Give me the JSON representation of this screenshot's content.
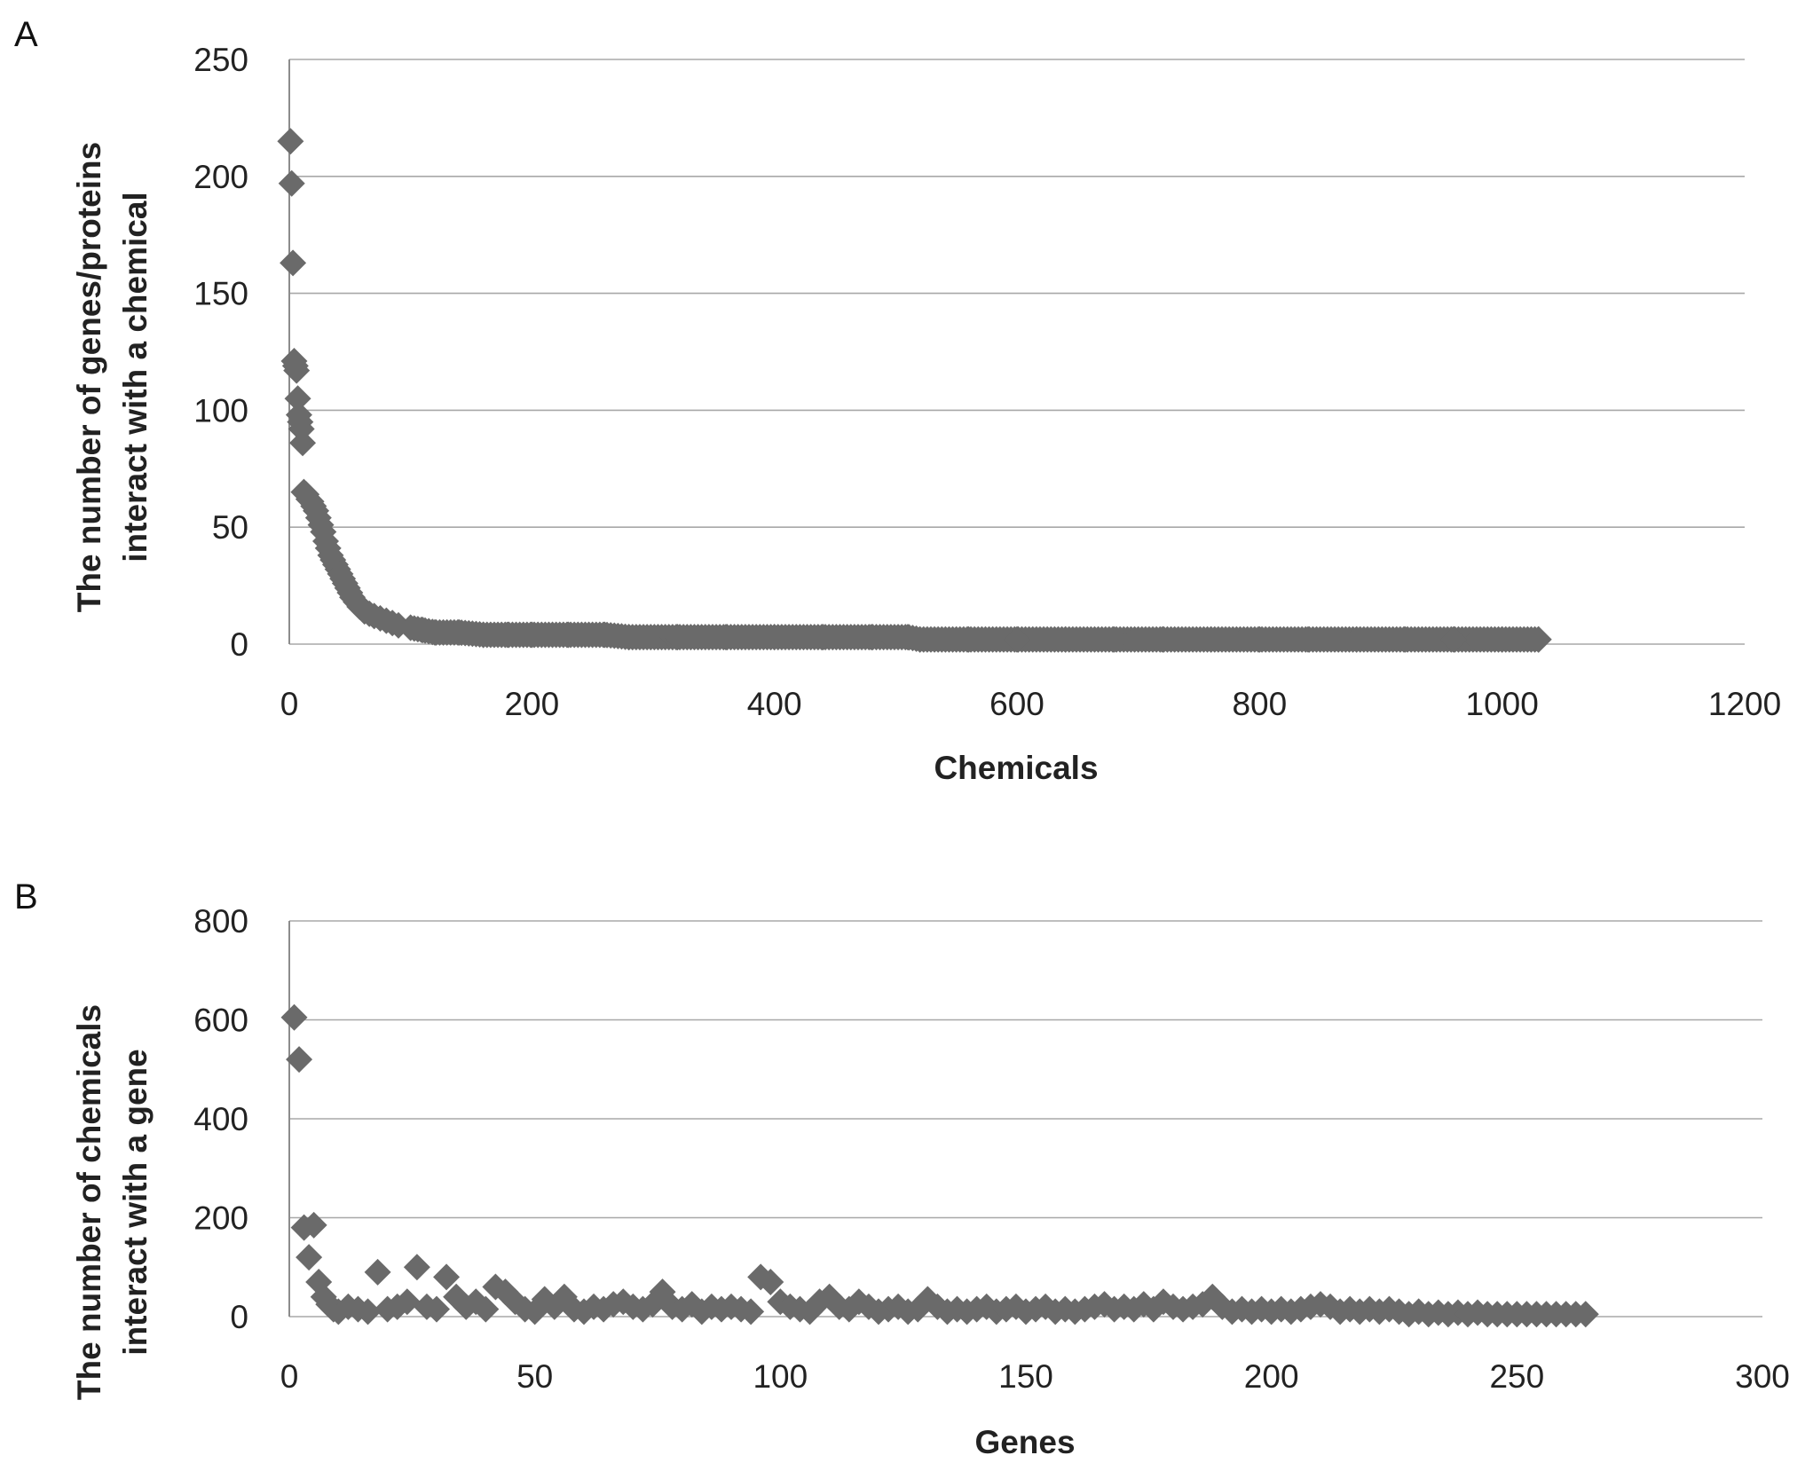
{
  "chart_data": [
    {
      "panel": "A",
      "type": "scatter",
      "marker": "diamond",
      "color": "#6a6a6a",
      "xlabel": "Chemicals",
      "ylabel_lines": [
        "The number of genes/proteins",
        "interact with a chemical"
      ],
      "xlim": [
        0,
        1200
      ],
      "ylim": [
        0,
        250
      ],
      "xticks": [
        0,
        200,
        400,
        600,
        800,
        1000,
        1200
      ],
      "yticks": [
        0,
        50,
        100,
        150,
        200,
        250
      ],
      "grid": "horizontal",
      "legend": "none",
      "x_range_of_points": [
        1,
        1030
      ],
      "points": [
        [
          1,
          215
        ],
        [
          2,
          197
        ],
        [
          3,
          163
        ],
        [
          4,
          121
        ],
        [
          5,
          119
        ],
        [
          6,
          117
        ],
        [
          7,
          105
        ],
        [
          8,
          98
        ],
        [
          9,
          95
        ],
        [
          10,
          92
        ],
        [
          11,
          86
        ],
        [
          12,
          65
        ],
        [
          14,
          64
        ],
        [
          16,
          62
        ],
        [
          18,
          61
        ],
        [
          20,
          59
        ],
        [
          22,
          57
        ],
        [
          24,
          54
        ],
        [
          26,
          51
        ],
        [
          28,
          48
        ],
        [
          30,
          44
        ],
        [
          32,
          41
        ],
        [
          34,
          38
        ],
        [
          36,
          36
        ],
        [
          38,
          34
        ],
        [
          40,
          32
        ],
        [
          42,
          30
        ],
        [
          44,
          28
        ],
        [
          46,
          26
        ],
        [
          48,
          24
        ],
        [
          50,
          22
        ],
        [
          52,
          20
        ],
        [
          55,
          18
        ],
        [
          58,
          16
        ],
        [
          62,
          14
        ],
        [
          66,
          13
        ],
        [
          70,
          12
        ],
        [
          75,
          11
        ],
        [
          80,
          10
        ],
        [
          85,
          9
        ],
        [
          90,
          8
        ],
        [
          100,
          7
        ],
        [
          110,
          6
        ],
        [
          120,
          5
        ],
        [
          140,
          5
        ],
        [
          160,
          4
        ],
        [
          180,
          4
        ],
        [
          200,
          4
        ],
        [
          230,
          4
        ],
        [
          260,
          4
        ],
        [
          280,
          3
        ],
        [
          320,
          3
        ],
        [
          360,
          3
        ],
        [
          400,
          3
        ],
        [
          440,
          3
        ],
        [
          480,
          3
        ],
        [
          510,
          3
        ],
        [
          520,
          2
        ],
        [
          560,
          2
        ],
        [
          600,
          2
        ],
        [
          640,
          2
        ],
        [
          680,
          2
        ],
        [
          720,
          2
        ],
        [
          760,
          2
        ],
        [
          800,
          2
        ],
        [
          840,
          2
        ],
        [
          880,
          2
        ],
        [
          920,
          2
        ],
        [
          960,
          2
        ],
        [
          1000,
          2
        ],
        [
          1030,
          2
        ]
      ]
    },
    {
      "panel": "B",
      "type": "scatter",
      "marker": "diamond",
      "color": "#6a6a6a",
      "xlabel": "Genes",
      "ylabel_lines": [
        "The number of chemicals",
        "interact with a gene"
      ],
      "xlim": [
        0,
        300
      ],
      "ylim": [
        0,
        800
      ],
      "xticks": [
        0,
        50,
        100,
        150,
        200,
        250,
        300
      ],
      "yticks": [
        0,
        200,
        400,
        600,
        800
      ],
      "grid": "horizontal",
      "legend": "none",
      "points": [
        [
          1,
          605
        ],
        [
          2,
          520
        ],
        [
          3,
          180
        ],
        [
          4,
          120
        ],
        [
          5,
          185
        ],
        [
          6,
          70
        ],
        [
          7,
          40
        ],
        [
          8,
          25
        ],
        [
          9,
          15
        ],
        [
          10,
          10
        ],
        [
          12,
          20
        ],
        [
          14,
          15
        ],
        [
          16,
          10
        ],
        [
          18,
          90
        ],
        [
          20,
          15
        ],
        [
          22,
          20
        ],
        [
          24,
          30
        ],
        [
          26,
          100
        ],
        [
          28,
          20
        ],
        [
          30,
          15
        ],
        [
          32,
          80
        ],
        [
          34,
          40
        ],
        [
          36,
          20
        ],
        [
          38,
          30
        ],
        [
          40,
          15
        ],
        [
          42,
          60
        ],
        [
          44,
          50
        ],
        [
          46,
          30
        ],
        [
          48,
          15
        ],
        [
          50,
          10
        ],
        [
          52,
          35
        ],
        [
          54,
          20
        ],
        [
          56,
          40
        ],
        [
          58,
          15
        ],
        [
          60,
          10
        ],
        [
          62,
          20
        ],
        [
          64,
          15
        ],
        [
          66,
          25
        ],
        [
          68,
          30
        ],
        [
          70,
          20
        ],
        [
          72,
          15
        ],
        [
          74,
          25
        ],
        [
          76,
          50
        ],
        [
          78,
          20
        ],
        [
          80,
          15
        ],
        [
          82,
          25
        ],
        [
          84,
          10
        ],
        [
          86,
          20
        ],
        [
          88,
          15
        ],
        [
          90,
          20
        ],
        [
          92,
          15
        ],
        [
          94,
          10
        ],
        [
          96,
          80
        ],
        [
          98,
          70
        ],
        [
          100,
          30
        ],
        [
          102,
          20
        ],
        [
          104,
          15
        ],
        [
          106,
          10
        ],
        [
          108,
          30
        ],
        [
          110,
          40
        ],
        [
          112,
          20
        ],
        [
          114,
          15
        ],
        [
          116,
          30
        ],
        [
          118,
          20
        ],
        [
          120,
          10
        ],
        [
          122,
          15
        ],
        [
          124,
          20
        ],
        [
          126,
          10
        ],
        [
          128,
          15
        ],
        [
          130,
          35
        ],
        [
          132,
          20
        ],
        [
          134,
          10
        ],
        [
          136,
          15
        ],
        [
          138,
          10
        ],
        [
          140,
          15
        ],
        [
          142,
          20
        ],
        [
          144,
          10
        ],
        [
          146,
          15
        ],
        [
          148,
          20
        ],
        [
          150,
          10
        ],
        [
          152,
          15
        ],
        [
          154,
          20
        ],
        [
          156,
          10
        ],
        [
          158,
          15
        ],
        [
          160,
          10
        ],
        [
          162,
          15
        ],
        [
          164,
          20
        ],
        [
          166,
          25
        ],
        [
          168,
          15
        ],
        [
          170,
          20
        ],
        [
          172,
          15
        ],
        [
          174,
          25
        ],
        [
          176,
          15
        ],
        [
          178,
          30
        ],
        [
          180,
          20
        ],
        [
          182,
          15
        ],
        [
          184,
          20
        ],
        [
          186,
          25
        ],
        [
          188,
          40
        ],
        [
          190,
          20
        ],
        [
          192,
          10
        ],
        [
          194,
          15
        ],
        [
          196,
          10
        ],
        [
          198,
          15
        ],
        [
          200,
          10
        ],
        [
          202,
          15
        ],
        [
          204,
          10
        ],
        [
          206,
          15
        ],
        [
          208,
          20
        ],
        [
          210,
          25
        ],
        [
          212,
          20
        ],
        [
          214,
          10
        ],
        [
          216,
          15
        ],
        [
          218,
          10
        ],
        [
          220,
          15
        ],
        [
          222,
          10
        ],
        [
          224,
          15
        ],
        [
          226,
          10
        ],
        [
          228,
          5
        ],
        [
          230,
          10
        ],
        [
          232,
          5
        ],
        [
          234,
          8
        ],
        [
          236,
          5
        ],
        [
          238,
          8
        ],
        [
          240,
          5
        ],
        [
          242,
          8
        ],
        [
          244,
          5
        ],
        [
          246,
          5
        ],
        [
          248,
          5
        ],
        [
          250,
          5
        ],
        [
          252,
          5
        ],
        [
          254,
          5
        ],
        [
          256,
          5
        ],
        [
          258,
          5
        ],
        [
          260,
          5
        ],
        [
          262,
          5
        ],
        [
          264,
          5
        ]
      ]
    }
  ]
}
